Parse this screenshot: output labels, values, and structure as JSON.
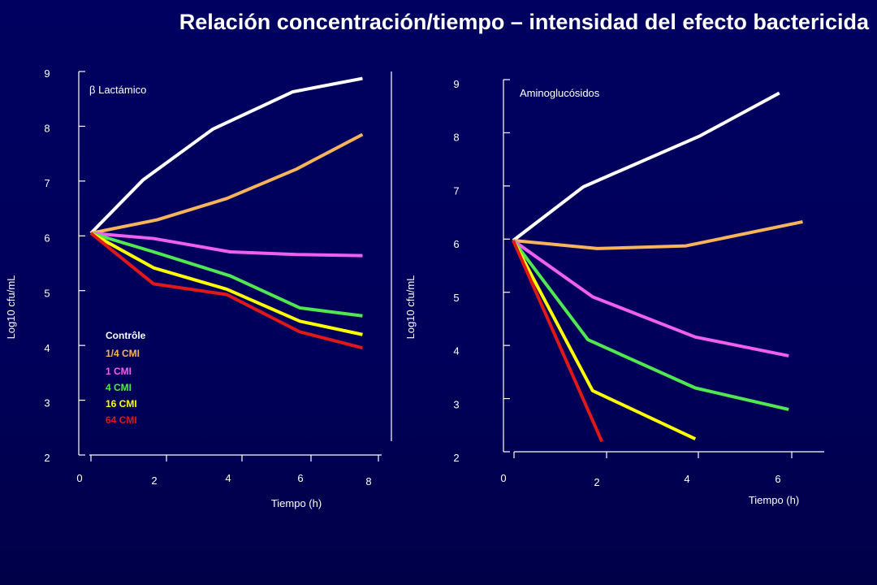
{
  "title": "Relación concentración/tiempo – intensidad del efecto bactericida",
  "chart_data": [
    {
      "type": "line",
      "annotation": "β Lactámico",
      "xlabel": "Tiempo (h)",
      "ylabel": "Log10 cfu/mL",
      "xlim": [
        0,
        8
      ],
      "ylim": [
        2,
        9
      ],
      "x_ticks": [
        0,
        2,
        4,
        6,
        8
      ],
      "y_ticks": [
        2,
        3,
        4,
        5,
        6,
        7,
        8,
        9
      ],
      "x": [
        0,
        1.5,
        3.5,
        5.8,
        7.8
      ],
      "series": [
        {
          "name": "Contrôle",
          "color": "#ffffff",
          "x": [
            0,
            1.5,
            3.5,
            5.8,
            7.8
          ],
          "values": [
            6.0,
            7.0,
            7.95,
            8.65,
            8.9
          ]
        },
        {
          "name": "1/4 CMI",
          "color": "#f8b45c",
          "x": [
            0,
            1.9,
            3.9,
            5.9,
            7.8
          ],
          "values": [
            6.0,
            6.25,
            6.65,
            7.2,
            7.85
          ]
        },
        {
          "name": "1 CMI",
          "color": "#f060f0",
          "x": [
            0,
            1.8,
            4.0,
            5.9,
            7.8
          ],
          "values": [
            6.0,
            5.9,
            5.65,
            5.6,
            5.58
          ]
        },
        {
          "name": "4 CMI",
          "color": "#50e850",
          "x": [
            0,
            1.8,
            4.0,
            6.0,
            7.8
          ],
          "values": [
            6.0,
            5.65,
            5.2,
            4.6,
            4.45
          ]
        },
        {
          "name": "16 CMI",
          "color": "#ffff00",
          "x": [
            0,
            1.8,
            3.9,
            6.0,
            7.8
          ],
          "values": [
            6.0,
            5.35,
            4.95,
            4.35,
            4.1
          ]
        },
        {
          "name": "64 CMI",
          "color": "#e01818",
          "x": [
            0,
            1.8,
            3.9,
            6.0,
            7.8
          ],
          "values": [
            6.0,
            5.05,
            4.85,
            4.15,
            3.85
          ]
        }
      ]
    },
    {
      "type": "line",
      "annotation": "Aminoglucósidos",
      "xlabel": "Tiempo (h)",
      "ylabel": "Log10 cfu/mL",
      "xlim": [
        0,
        7
      ],
      "ylim": [
        2,
        9
      ],
      "x_ticks": [
        0,
        2,
        4,
        6
      ],
      "y_ticks": [
        2,
        3,
        4,
        5,
        6,
        7,
        8,
        9
      ],
      "series": [
        {
          "name": "Contrôle",
          "color": "#ffffff",
          "x": [
            0,
            1.5,
            4.0,
            5.7
          ],
          "values": [
            6.0,
            7.0,
            7.95,
            8.75
          ]
        },
        {
          "name": "1/4 CMI",
          "color": "#f8b45c",
          "x": [
            0,
            1.8,
            3.7,
            6.2
          ],
          "values": [
            6.0,
            5.85,
            5.9,
            6.35
          ]
        },
        {
          "name": "1 CMI",
          "color": "#f060f0",
          "x": [
            0,
            1.7,
            3.9,
            5.9
          ],
          "values": [
            6.0,
            4.95,
            4.2,
            3.85
          ]
        },
        {
          "name": "4 CMI",
          "color": "#50e850",
          "x": [
            0,
            1.6,
            3.9,
            5.9
          ],
          "values": [
            6.0,
            4.15,
            3.25,
            2.85
          ]
        },
        {
          "name": "16 CMI",
          "color": "#ffff00",
          "x": [
            0,
            1.7,
            3.9
          ],
          "values": [
            6.0,
            3.2,
            2.3
          ]
        },
        {
          "name": "64 CMI",
          "color": "#e01818",
          "x": [
            0,
            1.9
          ],
          "values": [
            6.0,
            2.25
          ]
        }
      ]
    }
  ]
}
